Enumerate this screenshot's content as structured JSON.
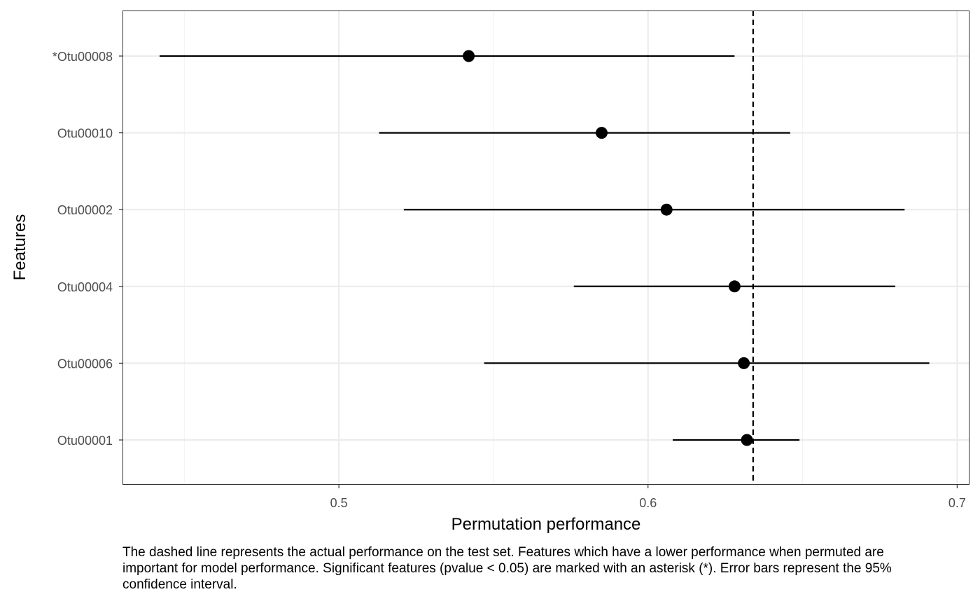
{
  "chart_data": {
    "type": "scatter",
    "subtype": "point-range",
    "xlabel": "Permutation performance",
    "ylabel": "Features",
    "xlim": [
      0.43,
      0.704
    ],
    "x_ticks": [
      0.5,
      0.6,
      0.7
    ],
    "x_tick_labels": [
      "0.5",
      "0.6",
      "0.7"
    ],
    "categories": [
      "*Otu00008",
      "Otu00010",
      "Otu00002",
      "Otu00004",
      "Otu00006",
      "Otu00001"
    ],
    "points": [
      {
        "feature": "*Otu00008",
        "value": 0.542,
        "lower": 0.442,
        "upper": 0.628
      },
      {
        "feature": "Otu00010",
        "value": 0.585,
        "lower": 0.513,
        "upper": 0.646
      },
      {
        "feature": "Otu00002",
        "value": 0.606,
        "lower": 0.521,
        "upper": 0.683
      },
      {
        "feature": "Otu00004",
        "value": 0.628,
        "lower": 0.576,
        "upper": 0.68
      },
      {
        "feature": "Otu00006",
        "value": 0.631,
        "lower": 0.547,
        "upper": 0.691
      },
      {
        "feature": "Otu00001",
        "value": 0.632,
        "lower": 0.608,
        "upper": 0.649
      }
    ],
    "reference_line": {
      "value": 0.634,
      "style": "dashed"
    },
    "grid": true,
    "legend": "none",
    "caption": "The dashed line represents the actual performance on the test set. Features which have a lower performance when permuted are important for model performance. Significant features (pvalue < 0.05) are marked with an asterisk (*). Error bars represent the 95% confidence interval."
  },
  "colors": {
    "points": "#000000",
    "panel_border": "#333333",
    "major_grid": "#ebebeb",
    "minor_grid": "#f3f3f3",
    "tick_text": "#4d4d4d"
  }
}
